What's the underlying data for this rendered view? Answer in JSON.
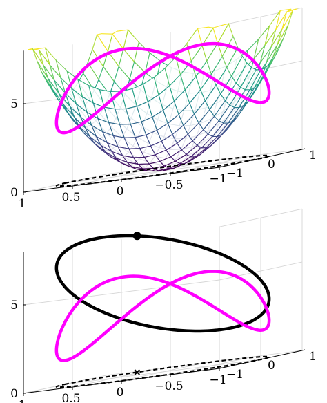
{
  "chart_data": [
    {
      "type": "surface3d",
      "surface": "z = 5(x^2 + y^2)",
      "surface_style": "mesh",
      "colormap": "viridis",
      "mesh_count": 18,
      "x_range": [
        -1,
        1
      ],
      "y_range": [
        -1,
        1
      ],
      "zlim": [
        0,
        8
      ],
      "xticks": [
        "1",
        "0.5",
        "0",
        "−0.5",
        "−1"
      ],
      "yticks": [
        "−1",
        "0",
        "1"
      ],
      "zticks": [
        "0",
        "5"
      ],
      "grid": true,
      "series": [
        {
          "style": "thick-solid",
          "color": "#ff00ff",
          "parametric": {
            "x": "cos t",
            "y": "sin t",
            "z": "5 + 2 sin 2t"
          }
        },
        {
          "style": "dashed",
          "color": "#000000",
          "parametric": {
            "x": "cos t",
            "y": "sin t",
            "z": "0"
          }
        }
      ]
    },
    {
      "type": "line3d",
      "zlim": [
        0,
        8
      ],
      "xticks": [
        "1",
        "0.5",
        "0",
        "−0.5",
        "−1"
      ],
      "yticks": [
        "−1",
        "0",
        "1"
      ],
      "zticks": [
        "0",
        "5"
      ],
      "grid": true,
      "series": [
        {
          "style": "thick-solid",
          "color": "#000000",
          "parametric": {
            "x": "cos t",
            "y": "sin t",
            "z": "5 + 2.5 cos t + 1.5 sin t"
          }
        },
        {
          "style": "thick-solid",
          "color": "#ff00ff",
          "parametric": {
            "x": "cos t",
            "y": "sin t",
            "z": "3.5 + 2 sin 2t"
          }
        },
        {
          "style": "dashed",
          "color": "#000000",
          "parametric": {
            "x": "cos t",
            "y": "sin t",
            "z": "0"
          }
        }
      ],
      "markers": [
        {
          "shape": "filled-circle",
          "x": 0.6,
          "y": 0.8,
          "z": 7.7
        },
        {
          "shape": "x",
          "x": 0.6,
          "y": 0.8,
          "z": 0
        }
      ]
    }
  ]
}
